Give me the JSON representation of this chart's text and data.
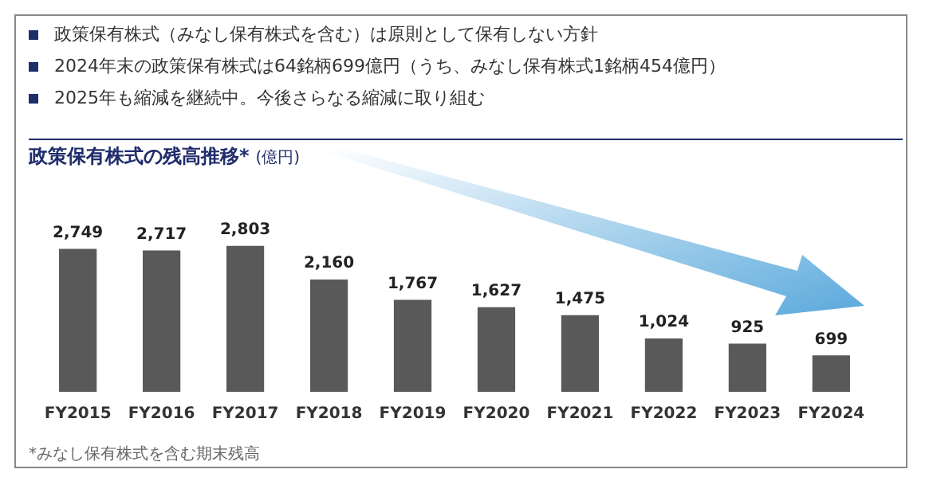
{
  "chart_data": {
    "type": "bar",
    "title": "政策保有株式の残高推移*",
    "subtitle": "(億円)",
    "categories": [
      "FY2015",
      "FY2016",
      "FY2017",
      "FY2018",
      "FY2019",
      "FY2020",
      "FY2021",
      "FY2022",
      "FY2023",
      "FY2024"
    ],
    "values": [
      2749,
      2717,
      2803,
      2160,
      1767,
      1627,
      1475,
      1024,
      925,
      699
    ],
    "color": "#595959",
    "value_labels": [
      "2,749",
      "2,717",
      "2,803",
      "2,160",
      "1,767",
      "1,627",
      "1,475",
      "1,024",
      "925",
      "699"
    ],
    "grid": false,
    "legend": false,
    "tick_labels": "x",
    "annotations": [
      "政策保有株式（みなし保有株式を含む）は原則として保有しない方針",
      "2024年末の政策保有株式は64銘柄699億円（うち、みなし保有株式1銘柄454億円）",
      "2025年も縮減を継続中。今後さらなる縮減に取り組む",
      "*みなし保有株式を含む期末残高"
    ]
  }
}
